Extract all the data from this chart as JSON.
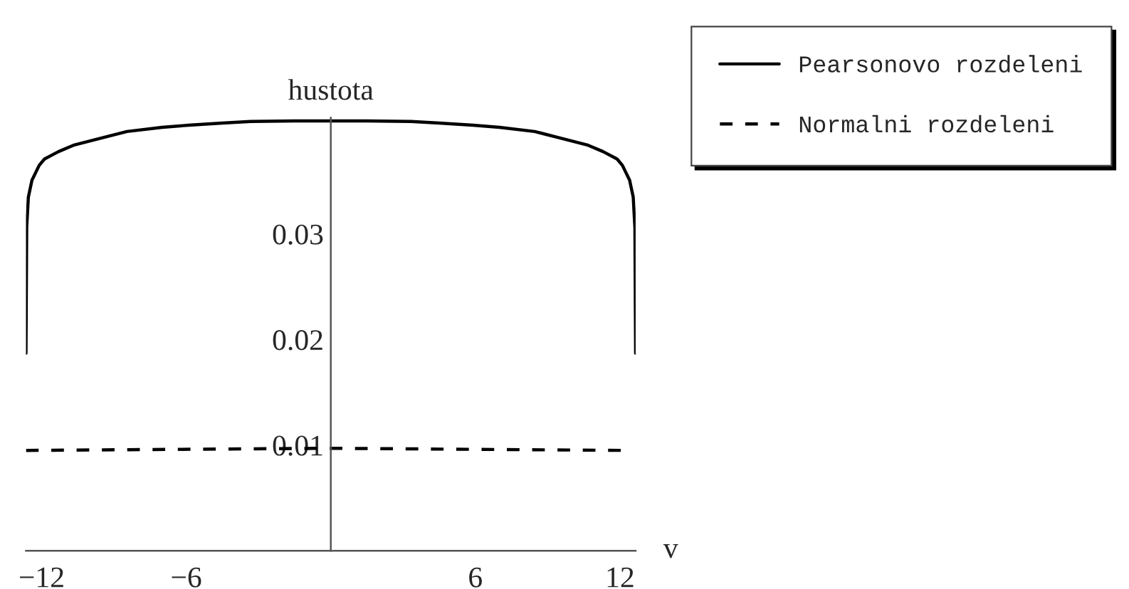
{
  "chart_data": {
    "type": "line",
    "ylabel": "hustota",
    "xlabel": "v",
    "series": [
      {
        "name": "Pearsonovo rozdeleni",
        "color": "#000000",
        "line_style": "solid",
        "x": [
          -12.65,
          -12.62,
          -12.55,
          -12.4,
          -12.1,
          -11.88,
          -11.3,
          -10.68,
          -9.5,
          -8.46,
          -7,
          -5.9,
          -4.5,
          -3.33,
          -1.5,
          0,
          1.5,
          3.33,
          4.5,
          5.9,
          7,
          8.46,
          9.5,
          10.68,
          11.3,
          11.88,
          12.1,
          12.4,
          12.55,
          12.62,
          12.65
        ],
        "values": [
          0.0187,
          0.0306,
          0.0335,
          0.0351,
          0.0365,
          0.0371,
          0.0378,
          0.0384,
          0.0391,
          0.0397,
          0.0401,
          0.0403,
          0.0405,
          0.04065,
          0.0407,
          0.0407,
          0.0407,
          0.04065,
          0.0405,
          0.0403,
          0.0401,
          0.0397,
          0.0391,
          0.0384,
          0.0378,
          0.0371,
          0.0365,
          0.0351,
          0.0335,
          0.0306,
          0.0187
        ]
      },
      {
        "name": "Normalni rozdeleni",
        "color": "#000000",
        "line_style": "dashed",
        "x": [
          -12.65,
          0,
          12.1
        ],
        "values": [
          0.0095,
          0.0097,
          0.0095
        ]
      }
    ],
    "xlim": [
      -12.65,
      12.65
    ],
    "ylim": [
      0,
      0.041
    ],
    "xticks": [
      {
        "value": -12,
        "label": "−12"
      },
      {
        "value": -6,
        "label": "−6"
      },
      6,
      12
    ],
    "yticks": [
      0.01,
      0.02,
      0.03
    ],
    "legend": "top right",
    "grid": false
  }
}
